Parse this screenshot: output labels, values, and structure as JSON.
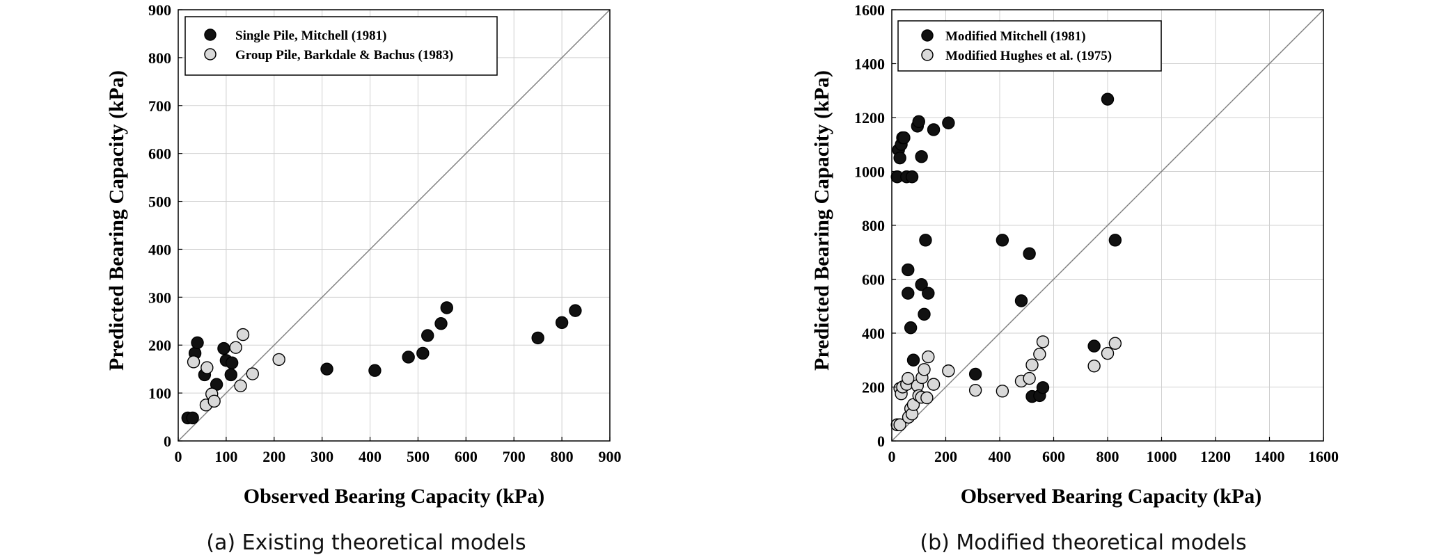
{
  "chart_data": [
    {
      "type": "scatter",
      "caption": "(a) Existing theoretical models",
      "xlabel": "Observed Bearing Capacity (kPa)",
      "ylabel": "Predicted Bearing Capacity (kPa)",
      "xlim": [
        0,
        900
      ],
      "ylim": [
        0,
        900
      ],
      "xticks": [
        0,
        100,
        200,
        300,
        400,
        500,
        600,
        700,
        800,
        900
      ],
      "yticks": [
        0,
        100,
        200,
        300,
        400,
        500,
        600,
        700,
        800,
        900
      ],
      "grid": true,
      "reference_line": "y = x",
      "legend_position": "top-left",
      "colors": {
        "filled": "#111111",
        "open": "#d9d9d9",
        "grid": "#d0d0d0",
        "line": "#808080"
      },
      "series": [
        {
          "name": "Single Pile, Mitchell (1981)",
          "style": "filled",
          "points": [
            [
              20,
              48
            ],
            [
              30,
              48
            ],
            [
              35,
              183
            ],
            [
              40,
              205
            ],
            [
              55,
              138
            ],
            [
              80,
              118
            ],
            [
              95,
              193
            ],
            [
              100,
              168
            ],
            [
              110,
              138
            ],
            [
              112,
              163
            ],
            [
              310,
              150
            ],
            [
              410,
              147
            ],
            [
              480,
              175
            ],
            [
              510,
              183
            ],
            [
              520,
              220
            ],
            [
              548,
              245
            ],
            [
              560,
              278
            ],
            [
              750,
              215
            ],
            [
              800,
              247
            ],
            [
              828,
              272
            ]
          ]
        },
        {
          "name": "Group Pile, Barkdale & Bachus (1983)",
          "style": "open",
          "points": [
            [
              32,
              165
            ],
            [
              58,
              75
            ],
            [
              60,
              153
            ],
            [
              70,
              98
            ],
            [
              75,
              83
            ],
            [
              120,
              195
            ],
            [
              130,
              115
            ],
            [
              135,
              222
            ],
            [
              155,
              140
            ],
            [
              210,
              170
            ]
          ]
        }
      ]
    },
    {
      "type": "scatter",
      "caption": "(b) Modified theoretical models",
      "xlabel": "Observed Bearing Capacity (kPa)",
      "ylabel": "Predicted Bearing Capacity (kPa)",
      "xlim": [
        0,
        1600
      ],
      "ylim": [
        0,
        1600
      ],
      "xticks": [
        0,
        200,
        400,
        600,
        800,
        1000,
        1200,
        1400,
        1600
      ],
      "yticks": [
        0,
        200,
        400,
        600,
        800,
        1000,
        1200,
        1400,
        1600
      ],
      "grid": true,
      "reference_line": "y = x",
      "legend_position": "top-left",
      "colors": {
        "filled": "#111111",
        "open": "#d9d9d9",
        "grid": "#d0d0d0",
        "line": "#808080"
      },
      "series": [
        {
          "name": "Modified Mitchell (1981)",
          "style": "filled",
          "points": [
            [
              20,
              980
            ],
            [
              25,
              1080
            ],
            [
              30,
              1050
            ],
            [
              35,
              1100
            ],
            [
              40,
              1125
            ],
            [
              45,
              1125
            ],
            [
              55,
              980
            ],
            [
              60,
              635
            ],
            [
              60,
              548
            ],
            [
              70,
              420
            ],
            [
              75,
              980
            ],
            [
              80,
              300
            ],
            [
              95,
              1168
            ],
            [
              100,
              1185
            ],
            [
              110,
              1055
            ],
            [
              110,
              580
            ],
            [
              120,
              470
            ],
            [
              125,
              745
            ],
            [
              135,
              548
            ],
            [
              155,
              1155
            ],
            [
              210,
              1180
            ],
            [
              310,
              248
            ],
            [
              410,
              745
            ],
            [
              480,
              520
            ],
            [
              510,
              695
            ],
            [
              520,
              165
            ],
            [
              548,
              168
            ],
            [
              560,
              198
            ],
            [
              750,
              352
            ],
            [
              800,
              1268
            ],
            [
              828,
              745
            ]
          ]
        },
        {
          "name": "Modified Hughes et al. (1975)",
          "style": "open",
          "points": [
            [
              20,
              60
            ],
            [
              30,
              60
            ],
            [
              30,
              195
            ],
            [
              35,
              175
            ],
            [
              40,
              200
            ],
            [
              55,
              210
            ],
            [
              60,
              232
            ],
            [
              62,
              88
            ],
            [
              70,
              120
            ],
            [
              75,
              100
            ],
            [
              80,
              135
            ],
            [
              95,
              205
            ],
            [
              100,
              168
            ],
            [
              110,
              162
            ],
            [
              112,
              235
            ],
            [
              120,
              265
            ],
            [
              130,
              160
            ],
            [
              135,
              312
            ],
            [
              155,
              210
            ],
            [
              210,
              260
            ],
            [
              310,
              188
            ],
            [
              410,
              185
            ],
            [
              480,
              222
            ],
            [
              510,
              232
            ],
            [
              520,
              282
            ],
            [
              548,
              322
            ],
            [
              560,
              368
            ],
            [
              750,
              278
            ],
            [
              800,
              325
            ],
            [
              828,
              362
            ]
          ]
        }
      ]
    }
  ]
}
